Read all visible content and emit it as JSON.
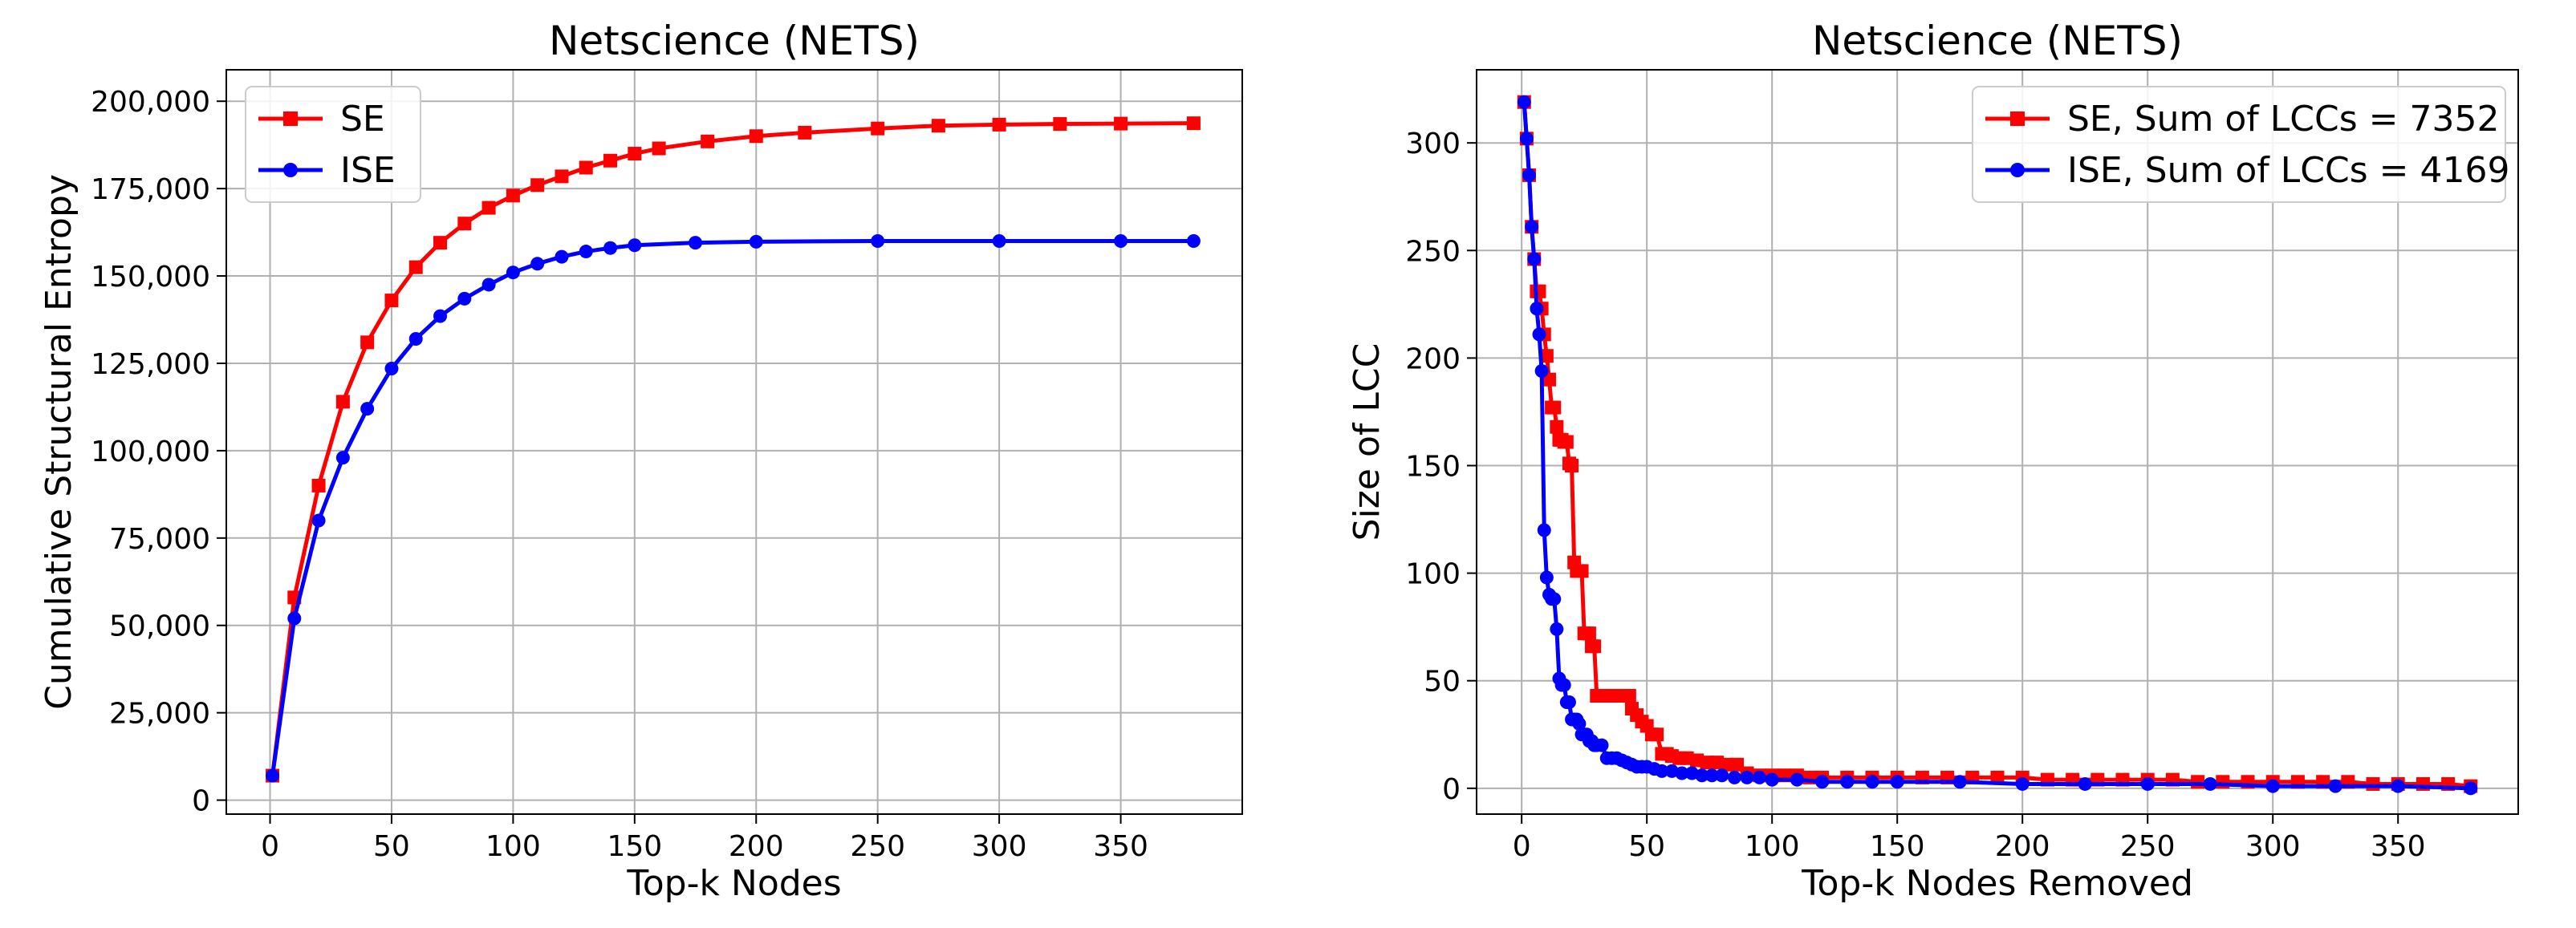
{
  "chart_data": [
    {
      "type": "line",
      "title": "Netscience (NETS)",
      "xlabel": "Top-k Nodes",
      "ylabel": "Cumulative Structural Entropy",
      "xlim": [
        -18,
        400
      ],
      "ylim": [
        -4000,
        209000
      ],
      "xticks": [
        0,
        50,
        100,
        150,
        200,
        250,
        300,
        350
      ],
      "xtick_labels": [
        "0",
        "50",
        "100",
        "150",
        "200",
        "250",
        "300",
        "350"
      ],
      "yticks": [
        0,
        25000,
        50000,
        75000,
        100000,
        125000,
        150000,
        175000,
        200000
      ],
      "ytick_labels": [
        "0",
        "25,000",
        "50,000",
        "75,000",
        "100,000",
        "125,000",
        "150,000",
        "175,000",
        "200,000"
      ],
      "grid": true,
      "legend_position": "top-left",
      "series": [
        {
          "name": "SE",
          "color": "#ff0000",
          "marker": "square",
          "x": [
            1,
            10,
            20,
            30,
            40,
            50,
            60,
            70,
            80,
            90,
            100,
            110,
            120,
            130,
            140,
            150,
            160,
            180,
            200,
            220,
            250,
            275,
            300,
            325,
            350,
            380
          ],
          "y": [
            7000,
            58000,
            90000,
            114000,
            131000,
            143000,
            152500,
            159500,
            165000,
            169500,
            173000,
            176000,
            178500,
            181000,
            183000,
            185000,
            186500,
            188500,
            190000,
            191000,
            192200,
            193000,
            193300,
            193500,
            193600,
            193700
          ]
        },
        {
          "name": "ISE",
          "color": "#0000ff",
          "marker": "circle",
          "x": [
            1,
            10,
            20,
            30,
            40,
            50,
            60,
            70,
            80,
            90,
            100,
            110,
            120,
            130,
            140,
            150,
            175,
            200,
            250,
            300,
            350,
            380
          ],
          "y": [
            7000,
            52000,
            80000,
            98000,
            112000,
            123500,
            132000,
            138500,
            143500,
            147500,
            151000,
            153500,
            155500,
            157000,
            158000,
            158800,
            159500,
            159800,
            160000,
            160000,
            160000,
            160000
          ]
        }
      ]
    },
    {
      "type": "line",
      "title": "Netscience (NETS)",
      "xlabel": "Top-k Nodes Removed",
      "ylabel": "Size of LCC",
      "xlim": [
        -18,
        398
      ],
      "ylim": [
        -12,
        334
      ],
      "xticks": [
        0,
        50,
        100,
        150,
        200,
        250,
        300,
        350
      ],
      "xtick_labels": [
        "0",
        "50",
        "100",
        "150",
        "200",
        "250",
        "300",
        "350"
      ],
      "yticks": [
        0,
        50,
        100,
        150,
        200,
        250,
        300
      ],
      "ytick_labels": [
        "0",
        "50",
        "100",
        "150",
        "200",
        "250",
        "300"
      ],
      "grid": true,
      "legend_position": "top-right",
      "series": [
        {
          "name": "SE,  Sum of LCCs = 7352",
          "color": "#ff0000",
          "marker": "square",
          "x": [
            1,
            2,
            3,
            4,
            5,
            6,
            7,
            8,
            9,
            10,
            11,
            12,
            13,
            14,
            15,
            16,
            17,
            18,
            19,
            20,
            21,
            22,
            23,
            24,
            25,
            26,
            27,
            28,
            29,
            30,
            31,
            33,
            35,
            37,
            39,
            41,
            43,
            44,
            46,
            48,
            50,
            52,
            54,
            56,
            58,
            60,
            63,
            66,
            70,
            74,
            78,
            82,
            86,
            90,
            95,
            100,
            105,
            110,
            115,
            120,
            130,
            140,
            150,
            160,
            170,
            180,
            190,
            200,
            210,
            220,
            230,
            240,
            250,
            260,
            270,
            280,
            290,
            300,
            310,
            320,
            330,
            340,
            350,
            360,
            370,
            379
          ],
          "y": [
            319,
            302,
            285,
            261,
            246,
            231,
            231,
            223,
            211,
            201,
            190,
            177,
            177,
            168,
            162,
            162,
            161,
            161,
            151,
            150,
            105,
            101,
            101,
            101,
            72,
            72,
            72,
            66,
            66,
            43,
            43,
            43,
            43,
            43,
            43,
            43,
            43,
            37,
            34,
            31,
            29,
            25,
            25,
            16,
            16,
            15,
            14,
            14,
            13,
            12,
            12,
            11,
            11,
            7,
            6,
            6,
            6,
            6,
            5,
            5,
            5,
            5,
            5,
            5,
            5,
            5,
            5,
            5,
            4,
            4,
            4,
            4,
            4,
            4,
            3,
            3,
            3,
            3,
            3,
            3,
            3,
            2,
            2,
            2,
            2,
            1
          ]
        },
        {
          "name": "ISE, Sum of LCCs = 4169",
          "color": "#0000ff",
          "marker": "circle",
          "x": [
            1,
            2,
            3,
            4,
            5,
            6,
            7,
            8,
            9,
            10,
            11,
            12,
            13,
            14,
            15,
            16,
            17,
            18,
            19,
            20,
            21,
            22,
            23,
            24,
            25,
            26,
            27,
            28,
            29,
            30,
            32,
            34,
            36,
            38,
            40,
            42,
            44,
            46,
            48,
            50,
            53,
            56,
            60,
            64,
            68,
            72,
            76,
            80,
            85,
            90,
            95,
            100,
            110,
            120,
            130,
            140,
            150,
            175,
            200,
            225,
            250,
            275,
            300,
            325,
            350,
            379
          ],
          "y": [
            319,
            302,
            285,
            261,
            246,
            223,
            211,
            194,
            120,
            98,
            90,
            88,
            88,
            74,
            51,
            48,
            48,
            40,
            40,
            32,
            32,
            32,
            30,
            25,
            25,
            25,
            22,
            22,
            20,
            20,
            20,
            14,
            14,
            14,
            13,
            12,
            11,
            10,
            10,
            10,
            9,
            8,
            8,
            7,
            7,
            6,
            6,
            6,
            5,
            5,
            5,
            4,
            4,
            3,
            3,
            3,
            3,
            3,
            2,
            2,
            2,
            2,
            1,
            1,
            1,
            0
          ]
        }
      ]
    }
  ]
}
